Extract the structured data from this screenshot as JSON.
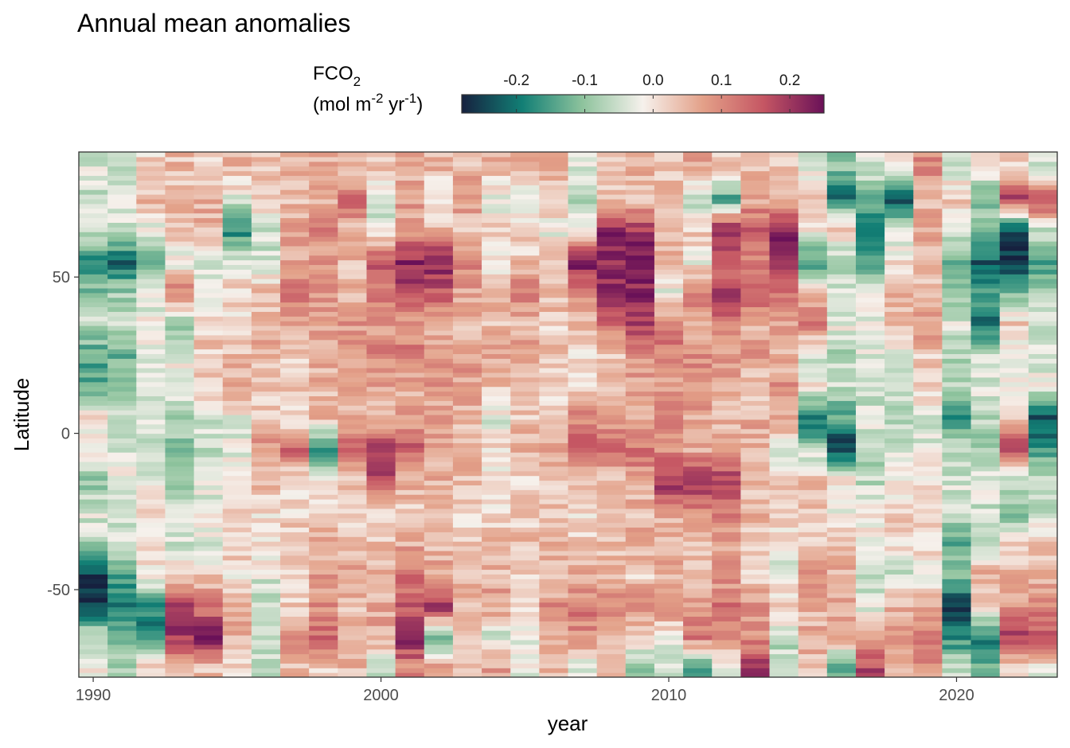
{
  "chart_data": {
    "type": "heatmap",
    "title": "Annual mean anomalies",
    "xlabel": "year",
    "ylabel": "Latitude",
    "xlim": [
      1989.5,
      2023.5
    ],
    "ylim": [
      -78,
      90
    ],
    "x_ticks": [
      1990,
      2000,
      2010,
      2020
    ],
    "y_ticks": [
      50,
      0,
      -50
    ],
    "y_tick_labels": [
      "50",
      "0",
      "-50"
    ],
    "years": [
      1990,
      1991,
      1992,
      1993,
      1994,
      1995,
      1996,
      1997,
      1998,
      1999,
      2000,
      2001,
      2002,
      2003,
      2004,
      2005,
      2006,
      2007,
      2008,
      2009,
      2010,
      2011,
      2012,
      2013,
      2014,
      2015,
      2016,
      2017,
      2018,
      2019,
      2020,
      2021,
      2022,
      2023
    ],
    "latitudes": [
      -75,
      -65,
      -55,
      -45,
      -35,
      -25,
      -15,
      -5,
      5,
      15,
      25,
      35,
      45,
      55,
      65,
      75,
      85
    ],
    "z": [
      [
        -0.02,
        -0.06,
        -0.24,
        -0.26,
        -0.08,
        -0.03,
        -0.11,
        0.01,
        0.0,
        -0.13,
        -0.15,
        -0.05,
        -0.1,
        -0.2,
        -0.03,
        -0.05,
        -0.04
      ],
      [
        -0.09,
        -0.12,
        -0.19,
        -0.14,
        -0.04,
        -0.05,
        -0.02,
        -0.04,
        -0.06,
        -0.09,
        -0.12,
        -0.06,
        -0.08,
        -0.22,
        -0.04,
        -0.02,
        -0.05
      ],
      [
        0.03,
        -0.2,
        -0.17,
        0.0,
        0.02,
        0.0,
        -0.03,
        -0.07,
        -0.03,
        -0.05,
        -0.04,
        -0.02,
        -0.03,
        -0.14,
        -0.03,
        0.05,
        0.02
      ],
      [
        0.05,
        0.2,
        0.21,
        0.01,
        -0.04,
        -0.05,
        -0.08,
        -0.11,
        -0.07,
        -0.03,
        -0.02,
        -0.12,
        0.12,
        -0.03,
        0.03,
        0.04,
        0.04
      ],
      [
        0.04,
        0.23,
        0.11,
        0.02,
        -0.03,
        -0.02,
        -0.04,
        -0.06,
        -0.04,
        0.02,
        0.03,
        0.02,
        0.0,
        -0.05,
        0.04,
        0.06,
        0.03
      ],
      [
        0.02,
        0.05,
        0.06,
        0.0,
        0.03,
        0.02,
        0.01,
        -0.03,
        -0.02,
        0.06,
        0.04,
        0.0,
        0.02,
        -0.04,
        -0.18,
        -0.03,
        0.05
      ],
      [
        -0.08,
        -0.05,
        -0.07,
        -0.03,
        0.0,
        0.01,
        0.04,
        0.09,
        0.02,
        0.04,
        0.05,
        0.05,
        0.04,
        -0.05,
        -0.05,
        0.02,
        0.03
      ],
      [
        0.04,
        0.08,
        0.02,
        0.03,
        0.04,
        0.02,
        -0.02,
        0.16,
        -0.01,
        0.03,
        0.03,
        0.08,
        0.14,
        0.06,
        0.07,
        0.04,
        0.06
      ],
      [
        0.03,
        0.14,
        0.09,
        0.07,
        0.06,
        0.01,
        0.0,
        -0.19,
        0.04,
        0.05,
        0.06,
        0.06,
        0.09,
        0.08,
        0.1,
        0.05,
        0.05
      ],
      [
        0.05,
        0.05,
        0.03,
        0.08,
        0.04,
        0.02,
        0.03,
        0.14,
        0.05,
        0.06,
        0.09,
        0.08,
        0.04,
        0.05,
        0.04,
        0.14,
        0.04
      ],
      [
        -0.05,
        0.06,
        0.06,
        0.06,
        0.04,
        -0.02,
        0.16,
        0.22,
        0.05,
        0.07,
        0.1,
        0.08,
        0.11,
        0.18,
        -0.03,
        -0.06,
        0.04
      ],
      [
        0.1,
        0.22,
        0.16,
        0.12,
        0.06,
        0.03,
        0.05,
        0.16,
        0.07,
        0.05,
        0.12,
        0.08,
        0.19,
        0.22,
        0.08,
        0.07,
        0.06
      ],
      [
        0.09,
        -0.14,
        0.22,
        0.07,
        0.04,
        0.05,
        0.06,
        0.06,
        0.06,
        0.08,
        0.08,
        0.06,
        0.15,
        0.23,
        0.06,
        -0.03,
        0.05
      ],
      [
        0.05,
        0.05,
        0.03,
        0.06,
        0.02,
        0.02,
        0.05,
        0.03,
        0.04,
        0.07,
        0.08,
        0.05,
        0.06,
        0.12,
        0.02,
        0.1,
        0.04
      ],
      [
        0.07,
        -0.05,
        0.08,
        0.05,
        0.04,
        0.0,
        0.0,
        0.01,
        -0.03,
        0.04,
        0.06,
        0.04,
        0.06,
        -0.02,
        0.03,
        -0.04,
        0.05
      ],
      [
        -0.02,
        -0.04,
        0.03,
        0.02,
        0.04,
        0.02,
        0.02,
        0.06,
        0.03,
        0.06,
        0.07,
        0.05,
        0.13,
        0.03,
        0.02,
        -0.03,
        0.06
      ],
      [
        0.04,
        0.08,
        0.09,
        0.03,
        0.06,
        0.03,
        0.02,
        0.08,
        0.02,
        0.01,
        0.04,
        0.02,
        0.05,
        0.04,
        -0.02,
        0.04,
        0.05
      ],
      [
        -0.05,
        0.09,
        0.12,
        0.05,
        0.03,
        0.01,
        0.02,
        0.15,
        0.1,
        0.02,
        0.0,
        0.05,
        0.1,
        0.24,
        -0.03,
        -0.06,
        -0.04
      ],
      [
        0.05,
        0.07,
        0.11,
        0.04,
        0.05,
        0.02,
        0.03,
        0.15,
        0.08,
        0.05,
        0.04,
        0.12,
        0.2,
        0.22,
        0.23,
        0.05,
        0.03
      ],
      [
        -0.12,
        0.03,
        0.09,
        0.02,
        0.06,
        0.04,
        0.07,
        0.13,
        0.06,
        0.07,
        0.1,
        0.19,
        0.22,
        0.24,
        0.2,
        0.03,
        0.05
      ],
      [
        -0.04,
        -0.02,
        0.1,
        0.06,
        0.04,
        0.06,
        0.22,
        0.08,
        0.09,
        0.08,
        0.11,
        0.13,
        -0.03,
        0.05,
        0.05,
        0.05,
        0.02
      ],
      [
        -0.14,
        0.12,
        0.08,
        0.03,
        0.05,
        0.1,
        0.23,
        0.05,
        0.07,
        0.09,
        0.09,
        0.05,
        0.12,
        -0.02,
        0.03,
        -0.06,
        0.06
      ],
      [
        -0.04,
        0.08,
        0.13,
        0.07,
        0.07,
        0.12,
        0.2,
        0.06,
        0.05,
        0.06,
        0.08,
        0.11,
        0.19,
        0.14,
        0.24,
        -0.15,
        0.04
      ],
      [
        0.2,
        0.09,
        0.08,
        0.02,
        0.03,
        0.05,
        0.03,
        0.06,
        0.06,
        0.03,
        0.08,
        0.06,
        0.17,
        0.1,
        0.15,
        0.07,
        0.05
      ],
      [
        -0.05,
        -0.07,
        0.03,
        -0.04,
        0.0,
        0.02,
        0.04,
        -0.03,
        0.07,
        0.09,
        0.04,
        0.08,
        0.12,
        0.23,
        0.22,
        0.06,
        0.04
      ],
      [
        0.04,
        0.06,
        0.05,
        0.08,
        0.02,
        0.03,
        0.06,
        -0.07,
        -0.22,
        0.0,
        -0.04,
        0.11,
        0.07,
        -0.17,
        0.0,
        0.05,
        -0.04
      ],
      [
        -0.15,
        0.06,
        0.07,
        0.05,
        0.05,
        -0.04,
        0.02,
        -0.25,
        -0.15,
        -0.05,
        -0.07,
        -0.02,
        -0.04,
        -0.1,
        0.06,
        -0.2,
        -0.1
      ],
      [
        0.18,
        0.06,
        -0.04,
        -0.08,
        0.0,
        -0.02,
        -0.06,
        -0.07,
        -0.03,
        -0.07,
        -0.04,
        -0.02,
        -0.03,
        -0.14,
        -0.22,
        -0.14,
        -0.04
      ],
      [
        0.02,
        0.09,
        0.05,
        -0.05,
        0.01,
        0.03,
        -0.02,
        -0.04,
        -0.08,
        -0.05,
        -0.03,
        0.03,
        0.06,
        0.0,
        -0.04,
        -0.25,
        0.02
      ],
      [
        0.09,
        0.1,
        0.05,
        -0.02,
        0.02,
        0.02,
        0.0,
        -0.03,
        -0.05,
        0.03,
        0.02,
        0.1,
        0.04,
        0.03,
        0.06,
        0.05,
        0.1
      ],
      [
        -0.05,
        -0.18,
        -0.26,
        -0.08,
        -0.15,
        -0.03,
        -0.05,
        -0.06,
        -0.17,
        -0.08,
        -0.08,
        -0.04,
        -0.08,
        -0.14,
        -0.04,
        0.03,
        -0.04
      ],
      [
        -0.12,
        -0.18,
        0.03,
        0.07,
        -0.1,
        -0.05,
        -0.04,
        -0.09,
        -0.07,
        -0.04,
        -0.06,
        -0.2,
        -0.13,
        -0.22,
        -0.11,
        -0.1,
        -0.02
      ],
      [
        0.03,
        0.19,
        0.07,
        0.05,
        0.03,
        -0.12,
        -0.06,
        0.18,
        0.05,
        -0.03,
        -0.04,
        0.03,
        -0.13,
        -0.26,
        -0.24,
        0.18,
        0.03
      ],
      [
        -0.03,
        0.16,
        0.1,
        0.04,
        0.03,
        -0.08,
        -0.05,
        -0.16,
        -0.24,
        -0.02,
        -0.05,
        -0.03,
        -0.1,
        -0.15,
        -0.06,
        0.2,
        -0.05
      ]
    ]
  },
  "legend": {
    "title_main": "FCO",
    "title_subscript": "2",
    "units_prefix": "(mol m",
    "units_exp1": "-2",
    "units_mid": " yr",
    "units_exp2": "-1",
    "units_suffix": ")",
    "range": [
      -0.28,
      0.25
    ],
    "ticks": [
      -0.2,
      -0.1,
      0.0,
      0.1,
      0.2
    ],
    "tick_labels": [
      "-0.2",
      "-0.1",
      "0.0",
      "0.1",
      "0.2"
    ],
    "colors": [
      "#16213f",
      "#127f75",
      "#8ec39d",
      "#f6f1ec",
      "#e3a088",
      "#c55663",
      "#6a1158"
    ]
  }
}
